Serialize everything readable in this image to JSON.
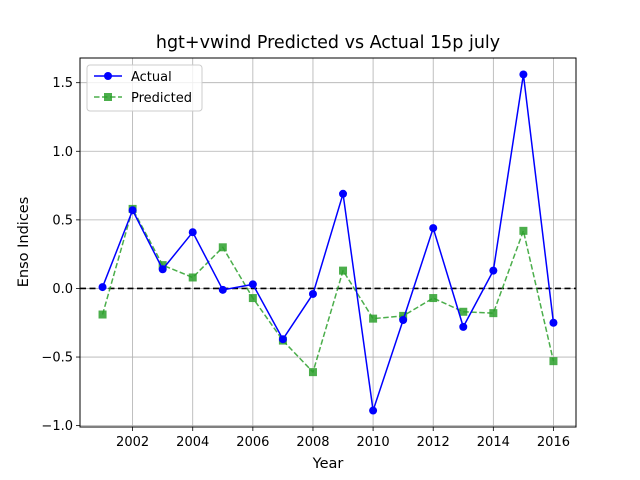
{
  "chart_data": {
    "type": "line",
    "title": "hgt+vwind Predicted vs Actual 15p july",
    "xlabel": "Year",
    "ylabel": "Enso Indices",
    "x": [
      2001,
      2002,
      2003,
      2004,
      2005,
      2006,
      2007,
      2008,
      2009,
      2010,
      2011,
      2012,
      2013,
      2014,
      2015,
      2016
    ],
    "xticks": [
      2002,
      2004,
      2006,
      2008,
      2010,
      2012,
      2014,
      2016
    ],
    "xtick_labels": [
      "2002",
      "2004",
      "2006",
      "2008",
      "2010",
      "2012",
      "2014",
      "2016"
    ],
    "yticks": [
      -1.0,
      -0.5,
      0.0,
      0.5,
      1.0,
      1.5
    ],
    "ytick_labels": [
      "−1.0",
      "−0.5",
      "0.0",
      "0.5",
      "1.0",
      "1.5"
    ],
    "xlim": [
      2000.25,
      2016.75
    ],
    "ylim": [
      -1.01,
      1.68
    ],
    "grid": true,
    "legend_position": "upper-left",
    "reference_line": {
      "y": 0.0,
      "color": "#000000",
      "style": "dashed"
    },
    "series": [
      {
        "name": "Actual",
        "color": "#0000ff",
        "line_style": "solid",
        "marker": "circle",
        "values": [
          0.01,
          0.57,
          0.14,
          0.41,
          -0.01,
          0.03,
          -0.37,
          -0.04,
          0.69,
          -0.89,
          -0.23,
          0.44,
          -0.28,
          0.13,
          1.56,
          -0.25
        ]
      },
      {
        "name": "Predicted",
        "color": "#2ca02c",
        "line_style": "dashed",
        "marker": "square",
        "values": [
          -0.19,
          0.58,
          0.17,
          0.08,
          0.3,
          -0.07,
          -0.38,
          -0.61,
          0.13,
          -0.22,
          -0.2,
          -0.07,
          -0.17,
          -0.18,
          0.42,
          -0.53
        ]
      }
    ]
  }
}
